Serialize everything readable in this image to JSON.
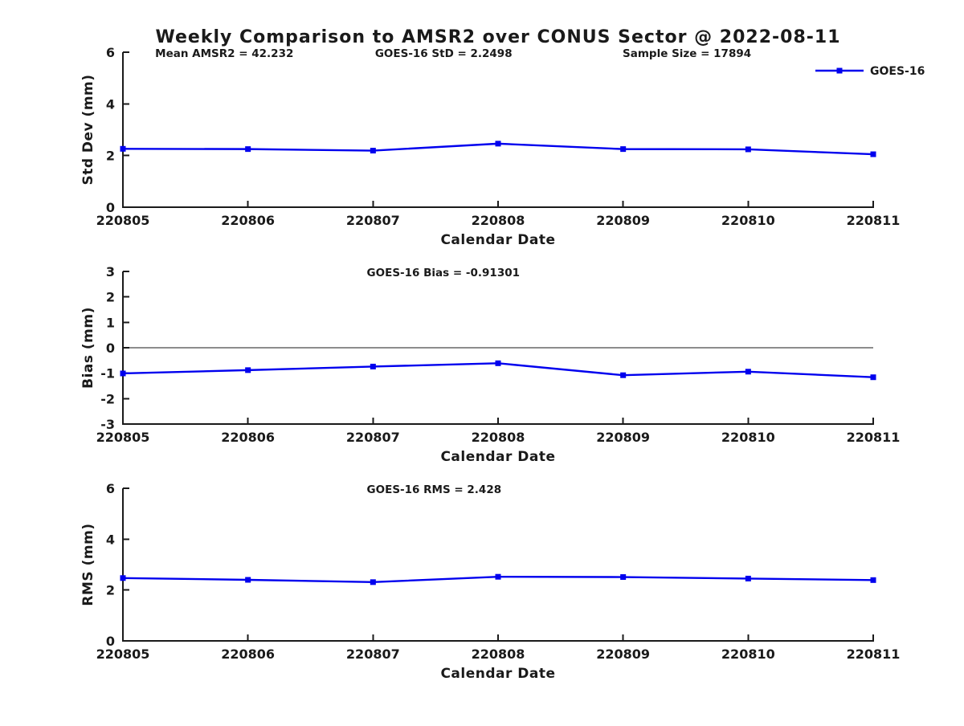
{
  "title": "Weekly Comparison to AMSR2 over CONUS Sector @ 2022-08-11",
  "legend": {
    "label": "GOES-16"
  },
  "colors": {
    "line": "#0000ee",
    "axis": "#1a1a1a",
    "background": "#ffffff"
  },
  "chart_data": {
    "type": "line",
    "x_categories": [
      "220805",
      "220806",
      "220807",
      "220808",
      "220809",
      "220810",
      "220811"
    ],
    "xlabel": "Calendar Date",
    "series_name": "GOES-16",
    "marker": "square",
    "grid": false,
    "legend_position": "top-right",
    "panels": [
      {
        "name": "std-dev",
        "ylabel": "Std Dev (mm)",
        "ylim": [
          0,
          6
        ],
        "yticks": [
          0,
          2,
          4,
          6
        ],
        "values": [
          2.26,
          2.25,
          2.19,
          2.46,
          2.25,
          2.24,
          2.05
        ],
        "annotations": [
          {
            "text": "Mean AMSR2 = 42.232",
            "xfrac": 0.043
          },
          {
            "text": "GOES-16 StD = 2.2498",
            "xfrac": 0.336
          },
          {
            "text": "Sample Size = 17894",
            "xfrac": 0.666
          }
        ]
      },
      {
        "name": "bias",
        "ylabel": "Bias (mm)",
        "ylim": [
          -3,
          3
        ],
        "yticks": [
          -3,
          -2,
          -1,
          0,
          1,
          2,
          3
        ],
        "zero_line": true,
        "values": [
          -1.01,
          -0.88,
          -0.74,
          -0.61,
          -1.08,
          -0.94,
          -1.16
        ],
        "annotations": [
          {
            "text": "GOES-16 Bias  = -0.91301",
            "xfrac": 0.325
          }
        ]
      },
      {
        "name": "rms",
        "ylabel": "RMS (mm)",
        "ylim": [
          0,
          6
        ],
        "yticks": [
          0,
          2,
          4,
          6
        ],
        "values": [
          2.47,
          2.4,
          2.31,
          2.52,
          2.51,
          2.45,
          2.39
        ],
        "annotations": [
          {
            "text": "GOES-16 RMS = 2.428",
            "xfrac": 0.325
          }
        ]
      }
    ]
  }
}
